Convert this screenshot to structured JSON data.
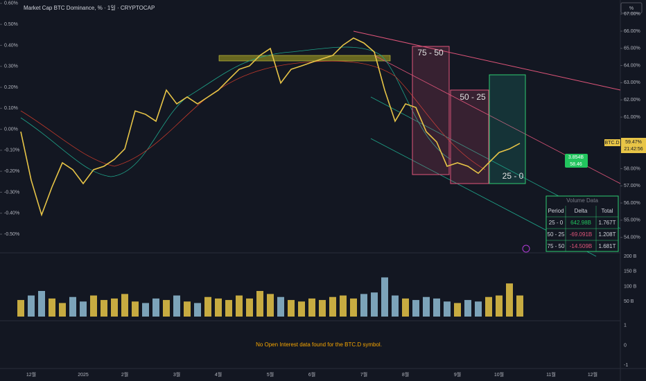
{
  "chart_data": {
    "type": "line",
    "title": "Market Cap BTC Dominance, % · 1일 · CRYPTOCAP",
    "unit_button": "%",
    "categories": [
      null,
      "12월",
      null,
      null,
      null,
      null,
      "2025",
      null,
      null,
      null,
      "2월",
      null,
      null,
      null,
      null,
      "3월",
      null,
      null,
      null,
      "4월",
      null,
      null,
      null,
      null,
      "5월",
      null,
      null,
      null,
      "6월",
      null,
      null,
      null,
      null,
      "7월",
      null,
      null,
      null,
      "8월",
      null,
      null,
      null,
      null,
      "9월",
      null,
      null,
      null,
      "10월",
      null,
      null,
      null,
      null,
      "11월",
      null,
      null,
      null,
      "12월"
    ],
    "series": [
      {
        "name": "BTC.D",
        "color": "#e8c547",
        "values": [
          60.15,
          57.33,
          55.31,
          56.93,
          58.34,
          57.94,
          57.13,
          57.94,
          58.14,
          58.54,
          59.15,
          61.36,
          61.16,
          60.76,
          62.57,
          61.77,
          62.17,
          61.77,
          62.17,
          62.57,
          63.18,
          63.78,
          63.98,
          64.59,
          64.99,
          62.98,
          63.78,
          63.98,
          64.19,
          64.39,
          64.59,
          65.19,
          65.6,
          65.31,
          64.79,
          62.57,
          60.76,
          61.77,
          61.56,
          60.15,
          59.55,
          58.14,
          58.34,
          58.14,
          57.73,
          58.34,
          58.94,
          59.15,
          59.47,
          null,
          null,
          null,
          null,
          null,
          null,
          null
        ]
      }
    ],
    "ylim": [
      53.1,
      67.41
    ],
    "yticks": [
      {
        "value": 54,
        "label": "54.00%"
      },
      {
        "value": 55,
        "label": "55.00%"
      },
      {
        "value": 56,
        "label": "56.00%"
      },
      {
        "value": 57,
        "label": "57.00%"
      },
      {
        "value": 58,
        "label": "58.00%"
      },
      {
        "value": 61,
        "label": "61.00%"
      },
      {
        "value": 62,
        "label": "62.00%"
      },
      {
        "value": 63,
        "label": "63.00%"
      },
      {
        "value": 64,
        "label": "64.00%"
      },
      {
        "value": 65,
        "label": "65.00%"
      },
      {
        "value": 66,
        "label": "66.00%"
      },
      {
        "value": 67,
        "label": "67.00%"
      }
    ],
    "y2lim": [
      -0.589,
      0.583
    ],
    "y2ticks": [
      {
        "value": 0.6,
        "label": "0.60%"
      },
      {
        "value": 0.5,
        "label": "0.50%"
      },
      {
        "value": 0.4,
        "label": "0.40%"
      },
      {
        "value": 0.3,
        "label": "0.30%"
      },
      {
        "value": 0.2,
        "label": "0.20%"
      },
      {
        "value": 0.1,
        "label": "0.10%"
      },
      {
        "value": 0,
        "label": "0.00%"
      },
      {
        "value": -0.1,
        "label": "-0.10%"
      },
      {
        "value": -0.2,
        "label": "-0.20%"
      },
      {
        "value": -0.3,
        "label": "-0.30%"
      },
      {
        "value": -0.4,
        "label": "-0.40%"
      },
      {
        "value": -0.5,
        "label": "-0.50%"
      }
    ],
    "last_label": {
      "symbol": "BTC.D",
      "price": "59.47%",
      "time": "21:42:56"
    },
    "flag_label": {
      "volume": "3.854B",
      "price": "58.46"
    },
    "zones": [
      "75 - 50",
      "50 - 25",
      "25 - 0"
    ],
    "volume_table": {
      "title": "Volume Data",
      "header": [
        "Period",
        "Delta",
        "Total"
      ],
      "rows": [
        [
          "25 - 0",
          "642.98B",
          "1.767T"
        ],
        [
          "50 - 25",
          "-69.091B",
          "1.208T"
        ],
        [
          "75 - 50",
          "-14.509B",
          "1.681T"
        ]
      ]
    },
    "volume": {
      "up_color": "#e8c547",
      "down_color": "#8fbcd4",
      "values": [
        55,
        70,
        85,
        60,
        45,
        65,
        50,
        70,
        55,
        60,
        75,
        50,
        45,
        60,
        55,
        70,
        50,
        45,
        65,
        60,
        55,
        70,
        60,
        85,
        75,
        65,
        55,
        50,
        60,
        55,
        65,
        70,
        60,
        75,
        80,
        130,
        70,
        60,
        55,
        65,
        60,
        50,
        45,
        55,
        50,
        65,
        70,
        110,
        70
      ],
      "ylim": [
        0,
        200
      ],
      "yticks": [
        {
          "value": 50,
          "label": "50 B"
        },
        {
          "value": 100,
          "label": "100 B"
        },
        {
          "value": 150,
          "label": "150 B"
        },
        {
          "value": 200,
          "label": "200 B"
        }
      ]
    },
    "open_interest": {
      "message": "No Open Interest data found for the BTC.D symbol.",
      "ylim": [
        -1.17,
        1.17
      ],
      "yticks": [
        1,
        0,
        -1
      ]
    }
  }
}
